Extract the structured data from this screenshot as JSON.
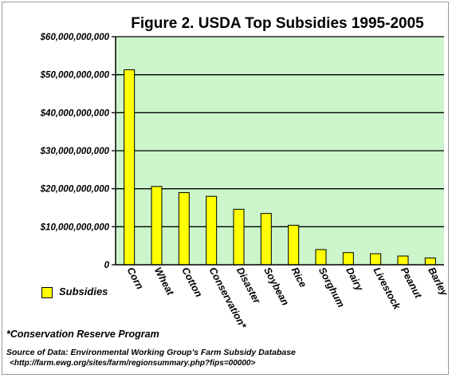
{
  "chart_data": {
    "type": "bar",
    "title": "Figure 2. USDA Top Subsidies 1995-2005",
    "categories": [
      "Corn",
      "Wheat",
      "Cotton",
      "Conservation*",
      "Disaster",
      "Soybean",
      "Rice",
      "Sorghum",
      "Dairy",
      "Livestock",
      "Peanut",
      "Barley"
    ],
    "series": [
      {
        "name": "Subsidies",
        "values": [
          51300000000,
          20600000000,
          19000000000,
          18000000000,
          14600000000,
          13500000000,
          10400000000,
          4000000000,
          3200000000,
          2900000000,
          2300000000,
          1800000000
        ]
      }
    ],
    "yticks": [
      "0",
      "$10,000,000,000",
      "$20,000,000,000",
      "$30,000,000,000",
      "$40,000,000,000",
      "$50,000,000,000",
      "$60,000,000,000"
    ],
    "ytick_values": [
      0,
      10000000000,
      20000000000,
      30000000000,
      40000000000,
      50000000000,
      60000000000
    ],
    "ylim": [
      0,
      60000000000
    ],
    "xlabel": "",
    "ylabel": "",
    "grid": true,
    "legend_position": "bottom-left",
    "colors": {
      "bar": "#ffff00",
      "bar_outline": "#000000",
      "plot_background": "#ccf5cc",
      "gridline": "#000000"
    }
  },
  "footnote": "*Conservation Reserve Program",
  "source": {
    "line1": "Source of Data: Environmental Working Group's Farm Subsidy Database",
    "line2": "<http://farm.ewg.org/sites/farm/regionsummary.php?fips=00000>"
  }
}
